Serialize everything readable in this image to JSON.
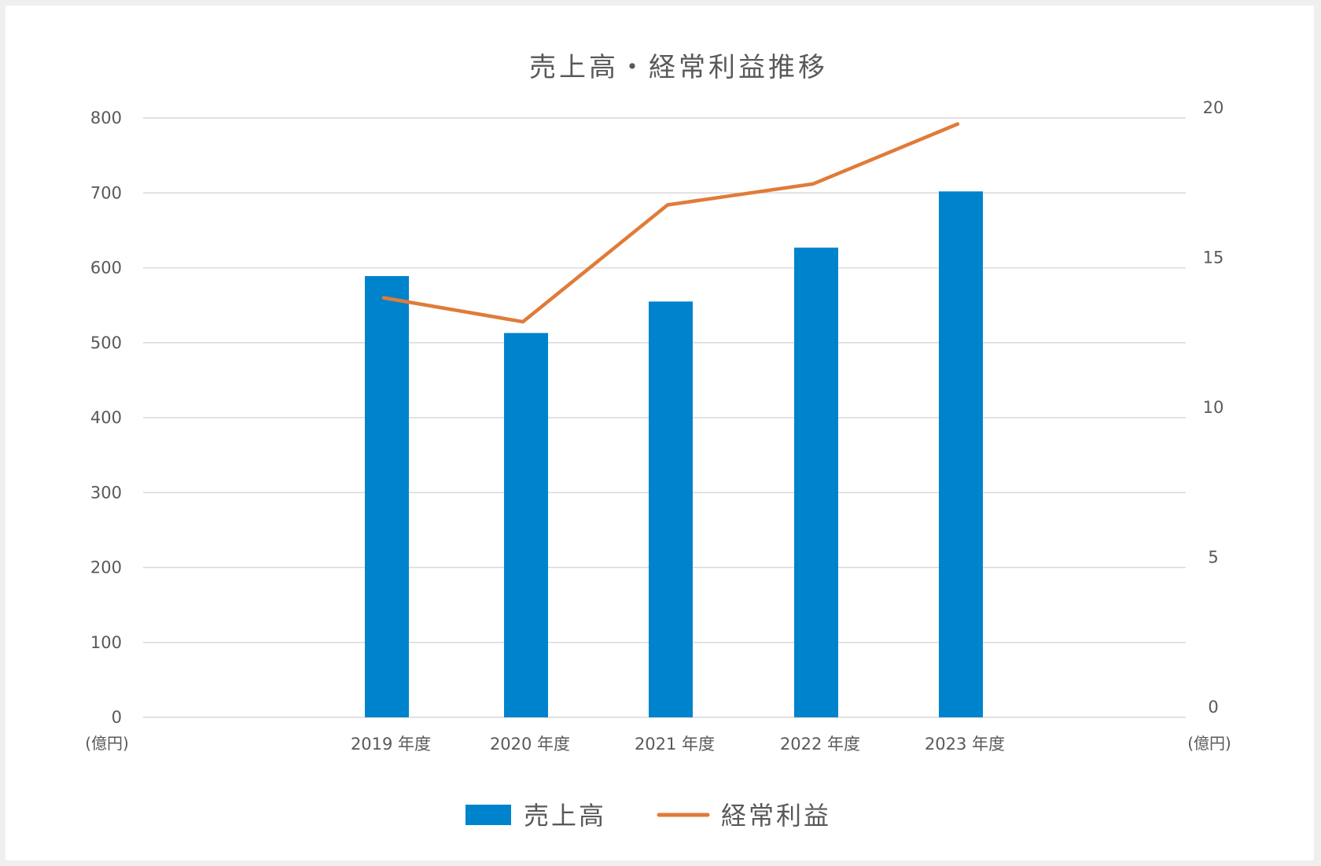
{
  "chart_data": {
    "type": "bar",
    "title": "売上高・経常利益推移",
    "categories": [
      "2019 年度",
      "2020 年度",
      "2021 年度",
      "2022 年度",
      "2023 年度"
    ],
    "series": [
      {
        "name": "売上高",
        "type": "bar",
        "axis": "left",
        "color": "#0083cd",
        "values": [
          589,
          513,
          555,
          627,
          702
        ]
      },
      {
        "name": "経常利益",
        "type": "line",
        "axis": "right",
        "color": "#e07b39",
        "values": [
          14.0,
          13.2,
          17.1,
          17.8,
          19.8
        ]
      }
    ],
    "y_left": {
      "unit_label": "(億円)",
      "ylim": [
        0,
        800
      ],
      "ticks": [
        "0",
        "100",
        "200",
        "300",
        "400",
        "500",
        "600",
        "700",
        "800"
      ]
    },
    "y_right": {
      "unit_label": "(億円)",
      "ylim": [
        0,
        20
      ],
      "ticks": [
        "0",
        "5",
        "10",
        "15",
        "20"
      ]
    },
    "grid": true,
    "legend_position": "bottom"
  }
}
